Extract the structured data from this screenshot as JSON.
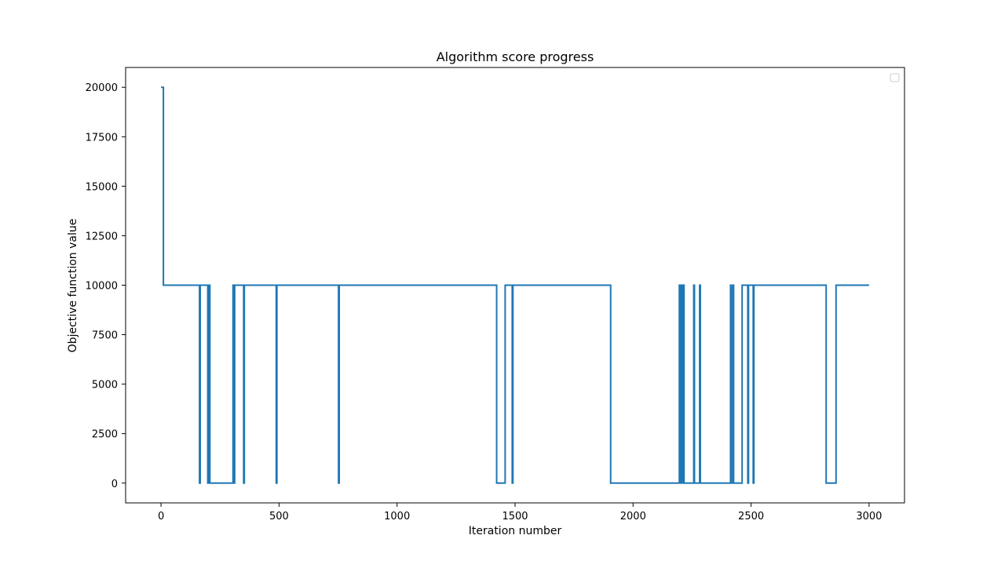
{
  "chart_data": {
    "type": "line",
    "title": "Algorithm score progress",
    "xlabel": "Iteration number",
    "ylabel": "Objective function value",
    "xlim": [
      -150,
      3150
    ],
    "ylim": [
      -1000,
      21000
    ],
    "xticks": [
      0,
      500,
      1000,
      1500,
      2000,
      2500,
      3000
    ],
    "yticks": [
      0,
      2500,
      5000,
      7500,
      10000,
      12500,
      15000,
      17500,
      20000
    ],
    "grid": false,
    "legend": {
      "location": "upper right",
      "entries": []
    },
    "line_color": "#1f77b4",
    "step": true,
    "series": [
      {
        "x": [
          0,
          8,
          8,
          10,
          10,
          163,
          163,
          166,
          166,
          198,
          198,
          203,
          203,
          207,
          207,
          210,
          210,
          305,
          305,
          308,
          308,
          312,
          312,
          315,
          315,
          350,
          350,
          353,
          353,
          488,
          488,
          491,
          491,
          752,
          752,
          755,
          755,
          1422,
          1422,
          1458,
          1458,
          1488,
          1488,
          1491,
          1491,
          1905,
          1905,
          2196,
          2196,
          2199,
          2199,
          2203,
          2203,
          2207,
          2207,
          2213,
          2213,
          2216,
          2216,
          2257,
          2257,
          2260,
          2260,
          2282,
          2282,
          2285,
          2285,
          2413,
          2413,
          2416,
          2416,
          2423,
          2423,
          2426,
          2426,
          2462,
          2462,
          2486,
          2486,
          2489,
          2489,
          2509,
          2509,
          2512,
          2512,
          2818,
          2818,
          2860,
          2860,
          3000
        ],
        "y": [
          20000,
          20000,
          20000,
          20000,
          10000,
          10000,
          0,
          0,
          10000,
          10000,
          0,
          0,
          10000,
          10000,
          0,
          0,
          0,
          0,
          10000,
          10000,
          0,
          0,
          10000,
          10000,
          10000,
          10000,
          0,
          0,
          10000,
          10000,
          0,
          0,
          10000,
          10000,
          0,
          0,
          10000,
          10000,
          0,
          0,
          10000,
          10000,
          0,
          0,
          10000,
          10000,
          0,
          0,
          10000,
          10000,
          0,
          0,
          10000,
          10000,
          0,
          0,
          10000,
          10000,
          0,
          0,
          10000,
          10000,
          0,
          0,
          10000,
          10000,
          0,
          0,
          10000,
          10000,
          0,
          0,
          10000,
          10000,
          0,
          0,
          10000,
          10000,
          0,
          0,
          10000,
          10000,
          0,
          0,
          10000,
          10000,
          0,
          0,
          10000,
          10000
        ]
      }
    ]
  }
}
